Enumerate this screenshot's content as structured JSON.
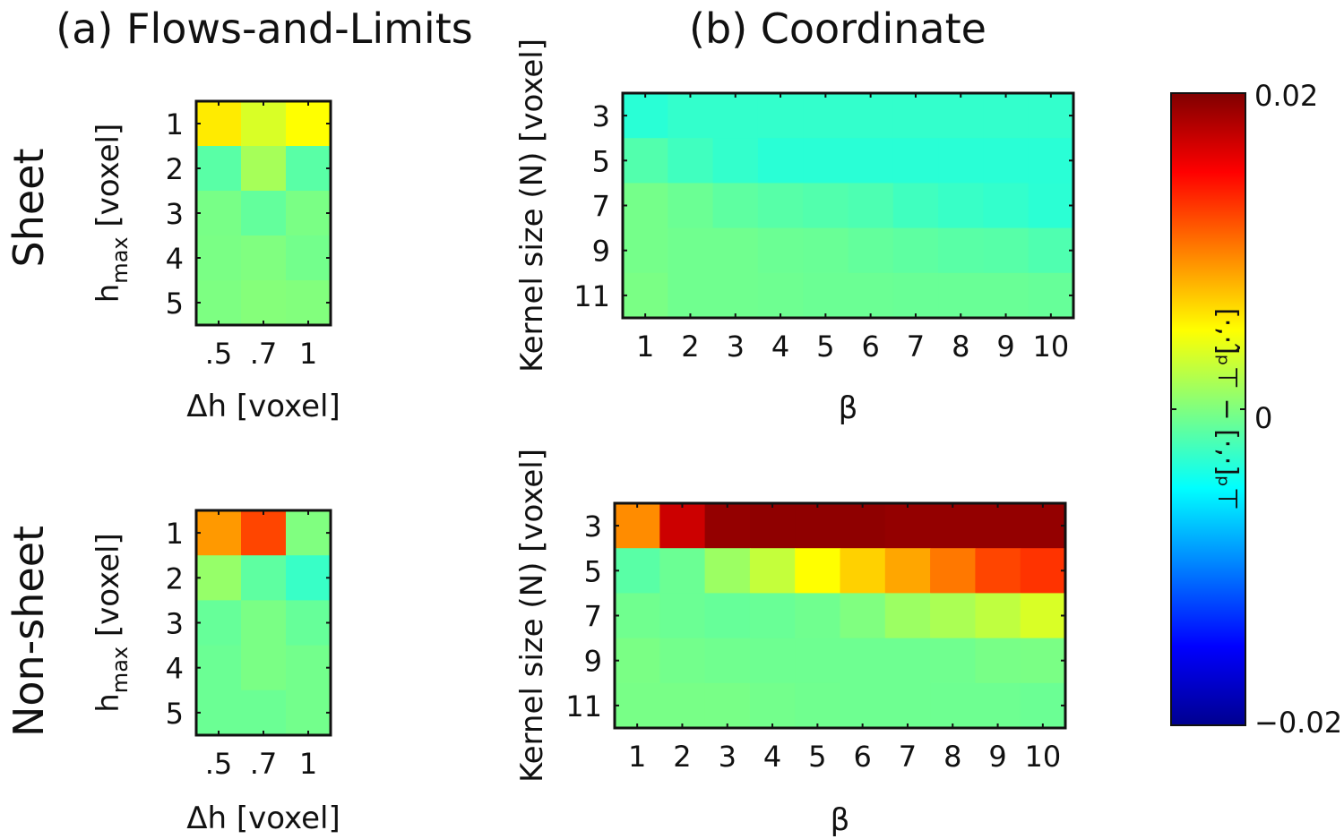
{
  "titles": {
    "a": "(a) Flows-and-Limits",
    "b": "(b) Coordinate"
  },
  "row_labels": {
    "sheet": "Sheet",
    "nonsheet": "Non-sheet"
  },
  "colorbar": {
    "colormap": "jet",
    "range": [
      -0.02,
      0.02
    ],
    "ticks": [
      "0.02",
      "0",
      "−0.02"
    ],
    "label": "[·,·]̂ₚ⊤ − [·,·]ₚ⊤"
  },
  "chart_data": [
    {
      "type": "heatmap",
      "panel": "a-sheet",
      "xlabel": "Δh [voxel]",
      "ylabel": "h",
      "ylabel_sub": "max",
      "ylabel_unit": " [voxel]",
      "x": [
        ".5",
        ".7",
        "1"
      ],
      "y": [
        "1",
        "2",
        "3",
        "4",
        "5"
      ],
      "values": [
        [
          0.0058,
          0.0035,
          0.005
        ],
        [
          -0.0015,
          0.0015,
          -0.0015
        ],
        [
          -0.0003,
          -0.0011,
          -0.0002
        ],
        [
          -0.0002,
          0.0,
          -0.0005
        ],
        [
          -0.0001,
          0.0002,
          0.0001
        ]
      ]
    },
    {
      "type": "heatmap",
      "panel": "a-nonsheet",
      "xlabel": "Δh [voxel]",
      "ylabel": "h",
      "ylabel_sub": "max",
      "ylabel_unit": " [voxel]",
      "x": [
        ".5",
        ".7",
        "1"
      ],
      "y": [
        "1",
        "2",
        "3",
        "4",
        "5"
      ],
      "values": [
        [
          0.009,
          0.0123,
          0.0
        ],
        [
          0.0009,
          -0.0013,
          -0.0028
        ],
        [
          -0.001,
          -0.0002,
          -0.001
        ],
        [
          -0.0008,
          -0.0002,
          -0.0005
        ],
        [
          -0.0008,
          -0.0008,
          -0.0005
        ]
      ]
    },
    {
      "type": "heatmap",
      "panel": "b-sheet",
      "xlabel": "β",
      "ylabel": "Kernel size (N) [voxel]",
      "x": [
        "1",
        "2",
        "3",
        "4",
        "5",
        "6",
        "7",
        "8",
        "9",
        "10"
      ],
      "y": [
        "3",
        "5",
        "7",
        "9",
        "11"
      ],
      "values": [
        [
          -0.0034,
          -0.003,
          -0.003,
          -0.003,
          -0.003,
          -0.003,
          -0.003,
          -0.003,
          -0.003,
          -0.003
        ],
        [
          -0.0018,
          -0.0025,
          -0.003,
          -0.0034,
          -0.0034,
          -0.0034,
          -0.0034,
          -0.0034,
          -0.0034,
          -0.0034
        ],
        [
          -0.0004,
          -0.0008,
          -0.0013,
          -0.0016,
          -0.0018,
          -0.002,
          -0.0025,
          -0.0028,
          -0.003,
          -0.0033
        ],
        [
          -0.0004,
          -0.0006,
          -0.0006,
          -0.0008,
          -0.0009,
          -0.0011,
          -0.0013,
          -0.0015,
          -0.0016,
          -0.0019
        ],
        [
          -0.0002,
          -0.0006,
          -0.0006,
          -0.0007,
          -0.0008,
          -0.0008,
          -0.0009,
          -0.0009,
          -0.0009,
          -0.001
        ]
      ]
    },
    {
      "type": "heatmap",
      "panel": "b-nonsheet",
      "xlabel": "β",
      "ylabel": "Kernel size (N) [voxel]",
      "x": [
        "1",
        "2",
        "3",
        "4",
        "5",
        "6",
        "7",
        "8",
        "9",
        "10"
      ],
      "y": [
        "3",
        "5",
        "7",
        "9",
        "11"
      ],
      "values": [
        [
          0.0095,
          0.017,
          0.0192,
          0.0194,
          0.0194,
          0.0194,
          0.0192,
          0.0192,
          0.0192,
          0.0192
        ],
        [
          -0.0015,
          -0.0008,
          0.0011,
          0.0027,
          0.005,
          0.0068,
          0.0085,
          0.0103,
          0.0123,
          0.013
        ],
        [
          -0.0006,
          -0.0008,
          -0.001,
          -0.0009,
          -0.0006,
          0.0,
          0.0011,
          0.0017,
          0.0025,
          0.0035
        ],
        [
          -0.0002,
          -0.0005,
          -0.0006,
          -0.0007,
          -0.0007,
          -0.0007,
          -0.0007,
          -0.0006,
          -0.0003,
          -0.0002
        ],
        [
          -0.0003,
          -0.0003,
          -0.0003,
          -0.0005,
          -0.0006,
          -0.0007,
          -0.0007,
          -0.0007,
          -0.0007,
          -0.0008
        ]
      ]
    }
  ]
}
